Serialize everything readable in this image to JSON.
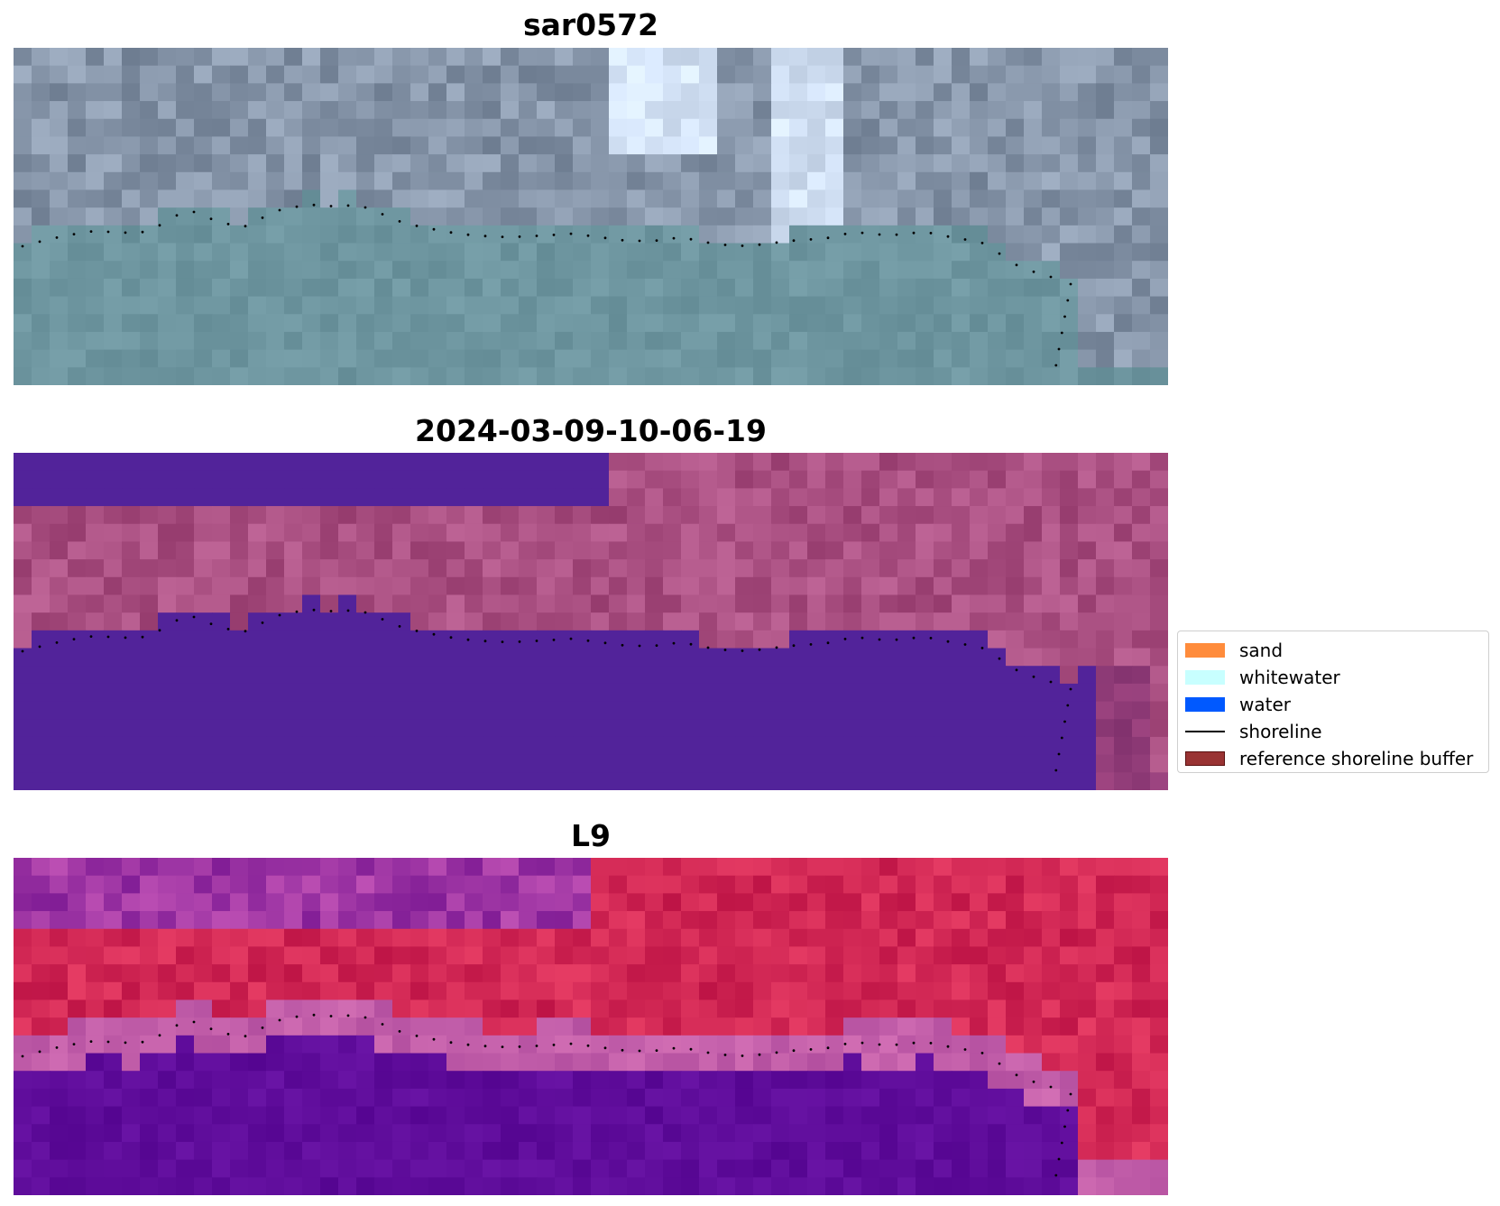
{
  "panels": [
    {
      "title": "sar0572",
      "style": "rgb"
    },
    {
      "title": "2024-03-09-10-06-19",
      "style": "classified"
    },
    {
      "title": "L9",
      "style": "index"
    }
  ],
  "legend": [
    {
      "label": "sand",
      "color": "#ff8c3c",
      "kind": "patch"
    },
    {
      "label": "whitewater",
      "color": "#c8ffff",
      "kind": "patch"
    },
    {
      "label": "water",
      "color": "#0059ff",
      "kind": "patch"
    },
    {
      "label": "shoreline",
      "color": "#000000",
      "kind": "line"
    },
    {
      "label": "reference shoreline buffer",
      "color": "#993333",
      "kind": "patch"
    }
  ]
}
